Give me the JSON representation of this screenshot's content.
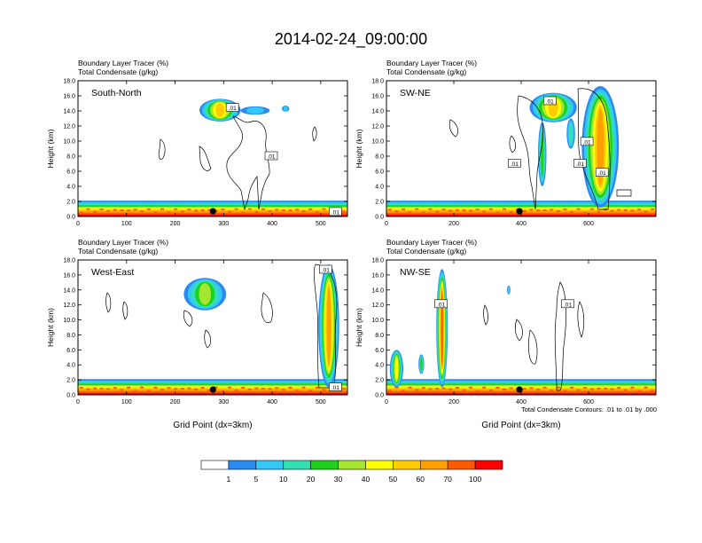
{
  "title": "2014-02-24_09:00:00",
  "contour_note": "Total Condensate Contours: .01 to .01 by .000",
  "x_axis_label": "Grid Point (dx=3km)",
  "colorbar": {
    "labels": [
      "1",
      "5",
      "10",
      "20",
      "30",
      "40",
      "50",
      "60",
      "70",
      "100"
    ],
    "colors": [
      "#ffffff",
      "#2b8af0",
      "#33c8f5",
      "#32e0b4",
      "#1ed11e",
      "#a6e62e",
      "#ffff00",
      "#ffcd00",
      "#ffa000",
      "#ff5a00",
      "#ff0000"
    ]
  },
  "chart_data": [
    {
      "type": "heatmap",
      "name": "South-North",
      "label_top": "Boundary Layer Tracer   (%)",
      "label_bottom": "Total Condensate   (g/kg)",
      "ylabel": "Height (km)",
      "xlabel": "",
      "xlim": [
        0,
        555
      ],
      "ylim": [
        0,
        18
      ],
      "xticks": [
        0,
        100,
        200,
        300,
        400,
        500
      ],
      "yticks": [
        "0.0",
        "2.0",
        "4.0",
        "6.0",
        "8.0",
        "10.0",
        "12.0",
        "14.0",
        "16.0",
        "18.0"
      ],
      "marker_x": 278,
      "contour_labels": [
        {
          "x": 318,
          "y": 14.4,
          "text": ".01"
        },
        {
          "x": 398,
          "y": 8.0,
          "text": ".01"
        },
        {
          "x": 530,
          "y": 0.6,
          "text": ".01"
        }
      ],
      "plumes": [
        {
          "x0": 250,
          "x1": 335,
          "y0": 12.6,
          "y1": 15.6,
          "peak": 50
        },
        {
          "x0": 335,
          "x1": 395,
          "y0": 13.5,
          "y1": 14.6,
          "peak": 8
        },
        {
          "x0": 420,
          "x1": 435,
          "y0": 13.9,
          "y1": 14.7,
          "peak": 5
        }
      ]
    },
    {
      "type": "heatmap",
      "name": "SW-NE",
      "label_top": "Boundary Layer Tracer   (%)",
      "label_bottom": "Total Condensate   (g/kg)",
      "ylabel": "Height (km)",
      "xlabel": "",
      "xlim": [
        0,
        800
      ],
      "ylim": [
        0,
        18
      ],
      "xticks": [
        0,
        200,
        400,
        600
      ],
      "yticks": [
        "0.0",
        "2.0",
        "4.0",
        "6.0",
        "8.0",
        "10.0",
        "12.0",
        "14.0",
        "16.0",
        "18.0"
      ],
      "marker_x": 395,
      "contour_labels": [
        {
          "x": 485,
          "y": 15.3,
          "text": ".01"
        },
        {
          "x": 595,
          "y": 9.9,
          "text": ".01"
        },
        {
          "x": 380,
          "y": 7.0,
          "text": ".01"
        },
        {
          "x": 575,
          "y": 7.0,
          "text": ".01"
        },
        {
          "x": 640,
          "y": 5.8,
          "text": ".01"
        }
      ],
      "plumes": [
        {
          "x0": 425,
          "x1": 565,
          "y0": 12.5,
          "y1": 16.4,
          "peak": 50
        },
        {
          "x0": 450,
          "x1": 475,
          "y0": 4.0,
          "y1": 12.5,
          "peak": 20
        },
        {
          "x0": 580,
          "x1": 690,
          "y0": 1.2,
          "y1": 17.3,
          "peak": 60
        },
        {
          "x0": 535,
          "x1": 560,
          "y0": 9.0,
          "y1": 13.0,
          "peak": 10
        }
      ]
    },
    {
      "type": "heatmap",
      "name": "West-East",
      "label_top": "Boundary Layer Tracer   (%)",
      "label_bottom": "Total Condensate   (g/kg)",
      "ylabel": "Height (km)",
      "xlabel": "Grid Point (dx=3km)",
      "xlim": [
        0,
        555
      ],
      "ylim": [
        0,
        18
      ],
      "xticks": [
        0,
        100,
        200,
        300,
        400,
        500
      ],
      "yticks": [
        "0.0",
        "2.0",
        "4.0",
        "6.0",
        "8.0",
        "10.0",
        "12.0",
        "14.0",
        "16.0",
        "18.0"
      ],
      "marker_x": 278,
      "contour_labels": [
        {
          "x": 510,
          "y": 16.7,
          "text": ".01"
        },
        {
          "x": 530,
          "y": 1.0,
          "text": ".01"
        }
      ],
      "plumes": [
        {
          "x0": 218,
          "x1": 305,
          "y0": 11.3,
          "y1": 15.6,
          "peak": 30
        },
        {
          "x0": 495,
          "x1": 538,
          "y0": 1.0,
          "y1": 17.4,
          "peak": 60
        }
      ]
    },
    {
      "type": "heatmap",
      "name": "NW-SE",
      "label_top": "Boundary Layer Tracer   (%)",
      "label_bottom": "Total Condensate   (g/kg)",
      "ylabel": "Height (km)",
      "xlabel": "Grid Point (dx=3km)",
      "xlim": [
        0,
        800
      ],
      "ylim": [
        0,
        18
      ],
      "xticks": [
        0,
        200,
        400,
        600
      ],
      "yticks": [
        "0.0",
        "2.0",
        "4.0",
        "6.0",
        "8.0",
        "10.0",
        "12.0",
        "14.0",
        "16.0",
        "18.0"
      ],
      "marker_x": 395,
      "contour_labels": [
        {
          "x": 162,
          "y": 12.1,
          "text": ".01"
        },
        {
          "x": 538,
          "y": 12.1,
          "text": ".01"
        }
      ],
      "plumes": [
        {
          "x0": 148,
          "x1": 182,
          "y0": 1.0,
          "y1": 16.8,
          "peak": 70
        },
        {
          "x0": 10,
          "x1": 50,
          "y0": 1.0,
          "y1": 6.0,
          "peak": 40
        },
        {
          "x0": 95,
          "x1": 112,
          "y0": 2.8,
          "y1": 5.4,
          "peak": 20
        },
        {
          "x0": 358,
          "x1": 368,
          "y0": 13.4,
          "y1": 14.6,
          "peak": 5
        }
      ]
    }
  ]
}
